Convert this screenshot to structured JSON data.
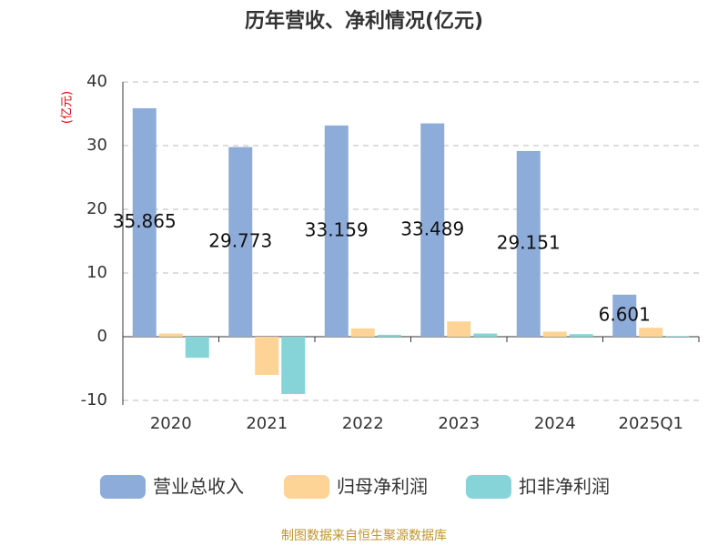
{
  "chart_data": {
    "type": "bar",
    "title": "历年营收、净利情况(亿元)",
    "y_axis_label": "(亿元)",
    "source": "制图数据来自恒生聚源数据库",
    "categories": [
      "2020",
      "2021",
      "2022",
      "2023",
      "2024",
      "2025Q1"
    ],
    "series": [
      {
        "name": "营业总收入",
        "color": "#8eacd9",
        "values": [
          35.865,
          29.773,
          33.159,
          33.489,
          29.151,
          6.601
        ],
        "show_labels": true
      },
      {
        "name": "归母净利润",
        "color": "#fdd495",
        "values": [
          0.5,
          -6.0,
          1.3,
          2.4,
          0.8,
          1.4
        ]
      },
      {
        "name": "扣非净利润",
        "color": "#86d4d8",
        "values": [
          -3.3,
          -9.0,
          0.3,
          0.5,
          0.4,
          0.1
        ]
      }
    ],
    "ylim": [
      -10,
      40
    ],
    "yticks": [
      -10,
      0,
      10,
      20,
      30,
      40
    ],
    "grid": true
  }
}
